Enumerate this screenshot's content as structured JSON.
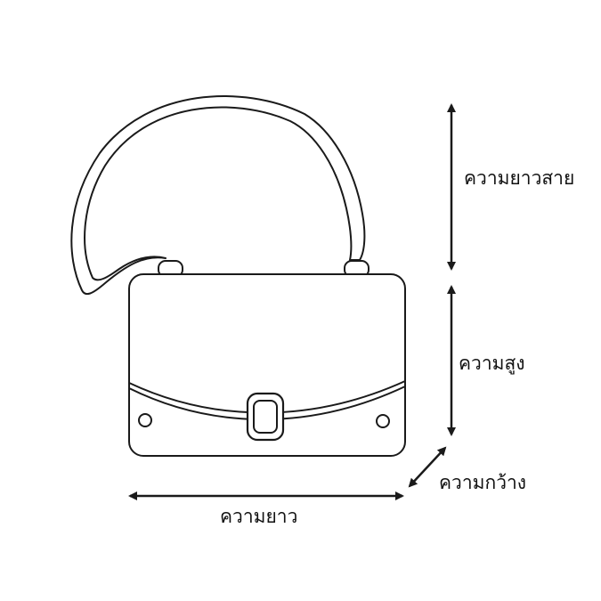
{
  "colors": {
    "line": "#1a1a1a",
    "background": "#ffffff"
  },
  "labels": {
    "strap_length": "ความยาวสาย",
    "height": "ความสูง",
    "width": "ความกว้าง",
    "length": "ความยาว"
  }
}
